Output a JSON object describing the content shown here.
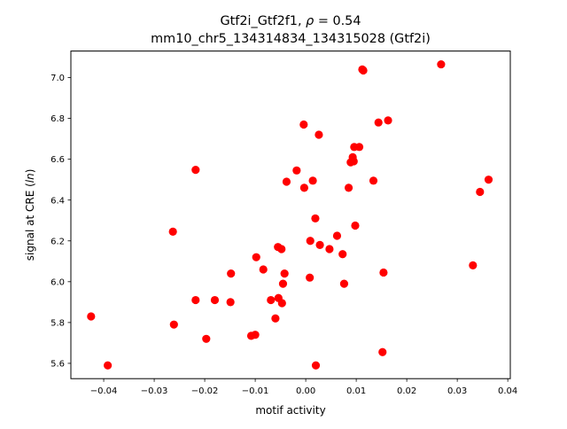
{
  "chart_data": {
    "type": "scatter",
    "title_line1": "Gtf2i_Gtf2f1, ",
    "title_rho": "ρ",
    "title_rho_value": " = 0.54",
    "title_line2": "mm10_chr5_134314834_134315028 (Gtf2i)",
    "xlabel": "motif activity",
    "ylabel_prefix": "signal at CRE (",
    "ylabel_italic": "ln",
    "ylabel_suffix": ")",
    "xlim": [
      -0.0465,
      0.0405
    ],
    "ylim": [
      5.525,
      7.13
    ],
    "xticks": [
      -0.04,
      -0.03,
      -0.02,
      -0.01,
      0.0,
      0.01,
      0.02,
      0.03,
      0.04
    ],
    "xtick_labels": [
      "−0.04",
      "−0.03",
      "−0.02",
      "−0.01",
      "0.00",
      "0.01",
      "0.02",
      "0.03",
      "0.04"
    ],
    "yticks": [
      5.6,
      5.8,
      6.0,
      6.2,
      6.4,
      6.6,
      6.8,
      7.0
    ],
    "ytick_labels": [
      "5.6",
      "5.8",
      "6.0",
      "6.2",
      "6.4",
      "6.6",
      "6.8",
      "7.0"
    ],
    "marker_color": "#ff0000",
    "grid": false,
    "points": [
      {
        "x": -0.0425,
        "y": 5.83
      },
      {
        "x": -0.0392,
        "y": 5.59
      },
      {
        "x": -0.0263,
        "y": 6.245
      },
      {
        "x": -0.0261,
        "y": 5.79
      },
      {
        "x": -0.0218,
        "y": 6.548
      },
      {
        "x": -0.0218,
        "y": 5.91
      },
      {
        "x": -0.0197,
        "y": 5.72
      },
      {
        "x": -0.018,
        "y": 5.91
      },
      {
        "x": -0.0148,
        "y": 6.04
      },
      {
        "x": -0.0149,
        "y": 5.9
      },
      {
        "x": -0.0108,
        "y": 5.735
      },
      {
        "x": -0.01,
        "y": 5.74
      },
      {
        "x": -0.0098,
        "y": 6.12
      },
      {
        "x": -0.0084,
        "y": 6.06
      },
      {
        "x": -0.0069,
        "y": 5.91
      },
      {
        "x": -0.006,
        "y": 5.82
      },
      {
        "x": -0.0055,
        "y": 6.17
      },
      {
        "x": -0.0054,
        "y": 5.92
      },
      {
        "x": -0.0048,
        "y": 6.16
      },
      {
        "x": -0.0047,
        "y": 5.895
      },
      {
        "x": -0.0045,
        "y": 5.99
      },
      {
        "x": -0.0042,
        "y": 6.04
      },
      {
        "x": -0.0038,
        "y": 6.49
      },
      {
        "x": -0.0018,
        "y": 6.545
      },
      {
        "x": -0.0004,
        "y": 6.77
      },
      {
        "x": -0.0003,
        "y": 6.46
      },
      {
        "x": 0.0008,
        "y": 6.02
      },
      {
        "x": 0.0009,
        "y": 6.2
      },
      {
        "x": 0.0014,
        "y": 6.495
      },
      {
        "x": 0.0019,
        "y": 6.31
      },
      {
        "x": 0.002,
        "y": 5.59
      },
      {
        "x": 0.0026,
        "y": 6.72
      },
      {
        "x": 0.0028,
        "y": 6.18
      },
      {
        "x": 0.0047,
        "y": 6.16
      },
      {
        "x": 0.0062,
        "y": 6.225
      },
      {
        "x": 0.0073,
        "y": 6.135
      },
      {
        "x": 0.0076,
        "y": 5.99
      },
      {
        "x": 0.0085,
        "y": 6.46
      },
      {
        "x": 0.0089,
        "y": 6.585
      },
      {
        "x": 0.0093,
        "y": 6.61
      },
      {
        "x": 0.0095,
        "y": 6.59
      },
      {
        "x": 0.0096,
        "y": 6.66
      },
      {
        "x": 0.0098,
        "y": 6.275
      },
      {
        "x": 0.0106,
        "y": 6.66
      },
      {
        "x": 0.0112,
        "y": 7.04
      },
      {
        "x": 0.0114,
        "y": 7.035
      },
      {
        "x": 0.0134,
        "y": 6.495
      },
      {
        "x": 0.0144,
        "y": 6.78
      },
      {
        "x": 0.0152,
        "y": 5.655
      },
      {
        "x": 0.0154,
        "y": 6.045
      },
      {
        "x": 0.0163,
        "y": 6.79
      },
      {
        "x": 0.0268,
        "y": 7.065
      },
      {
        "x": 0.0331,
        "y": 6.08
      },
      {
        "x": 0.0345,
        "y": 6.44
      },
      {
        "x": 0.0362,
        "y": 6.5
      }
    ]
  }
}
